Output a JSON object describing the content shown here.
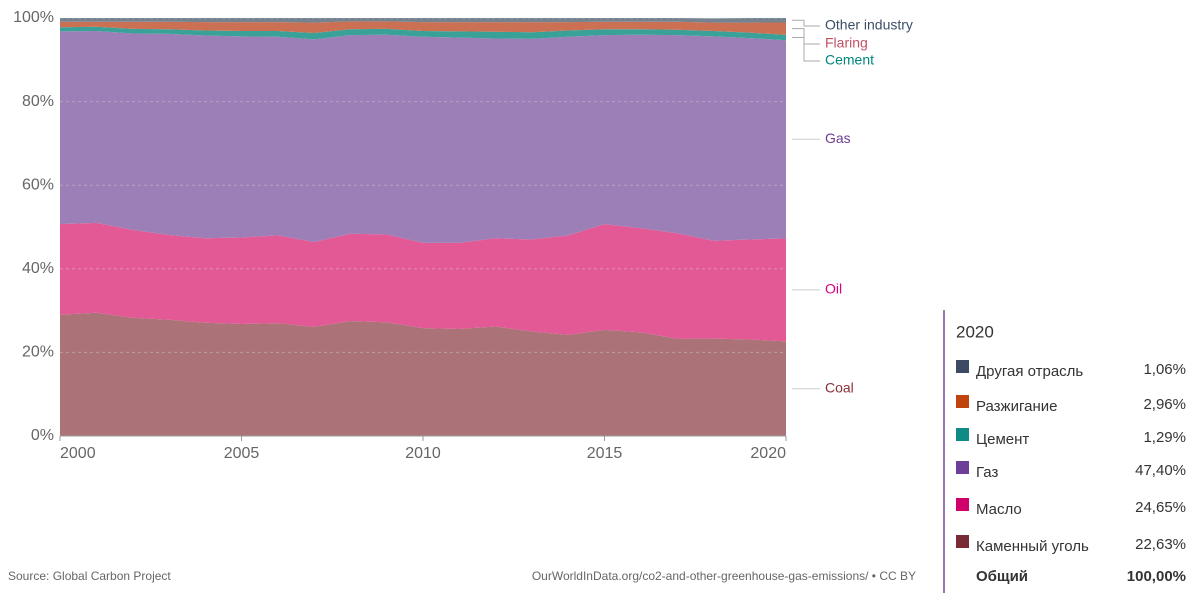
{
  "chart_data": {
    "type": "stacked_area",
    "x": [
      2000,
      2001,
      2002,
      2003,
      2004,
      2005,
      2006,
      2007,
      2008,
      2009,
      2010,
      2011,
      2012,
      2013,
      2014,
      2015,
      2016,
      2017,
      2018,
      2019,
      2020
    ],
    "xlim": [
      2000,
      2020
    ],
    "xticks": [
      2000,
      2005,
      2010,
      2015,
      2020
    ],
    "ylim": [
      0,
      100
    ],
    "yticks": [
      {
        "value": 0,
        "label": "0%"
      },
      {
        "value": 20,
        "label": "20%"
      },
      {
        "value": 40,
        "label": "40%"
      },
      {
        "value": 60,
        "label": "60%"
      },
      {
        "value": 80,
        "label": "80%"
      },
      {
        "value": 100,
        "label": "100%"
      }
    ],
    "grid": true,
    "series": [
      {
        "name": "Coal",
        "color": "#a66b70",
        "label_color": "#883039",
        "values": [
          29,
          29.5,
          28.3,
          27.8,
          27.1,
          26.8,
          27,
          26.1,
          27.5,
          27.2,
          25.8,
          25.6,
          26.2,
          25,
          24.2,
          25.4,
          24.8,
          23.3,
          23.3,
          23.1,
          22.63
        ]
      },
      {
        "name": "Oil",
        "color": "#e0508f",
        "label_color": "#d7007a",
        "values": [
          21.7,
          21.5,
          21,
          20.3,
          20.2,
          20.7,
          21,
          20.3,
          20.9,
          21,
          20.4,
          20.6,
          21.1,
          22,
          23.8,
          25.3,
          24.9,
          25.2,
          23.4,
          23.9,
          24.65
        ]
      },
      {
        "name": "Gas",
        "color": "#9778b2",
        "label_color": "#6d3e91",
        "values": [
          46.1,
          45.9,
          47,
          48.1,
          48.5,
          48.1,
          47.5,
          48.5,
          47.5,
          47.8,
          49.3,
          49.1,
          47.8,
          48,
          47.5,
          45.2,
          46.3,
          47.4,
          48.9,
          48.2,
          47.4
        ]
      },
      {
        "name": "Cement",
        "color": "#2f9c94",
        "label_color": "#00847e",
        "values": [
          1,
          1,
          1.1,
          1.1,
          1.2,
          1.3,
          1.4,
          1.5,
          1.4,
          1.4,
          1.4,
          1.5,
          1.6,
          1.6,
          1.5,
          1.4,
          1.3,
          1.3,
          1.3,
          1.3,
          1.29
        ]
      },
      {
        "name": "Flaring",
        "color": "#c8684a",
        "label_color": "#c15065",
        "values": [
          1.3,
          1.2,
          1.7,
          1.8,
          2,
          2.1,
          2.1,
          2.5,
          1.9,
          1.8,
          2.1,
          2.2,
          2.3,
          2.4,
          2,
          1.8,
          1.8,
          1.9,
          2,
          2.4,
          2.96
        ]
      },
      {
        "name": "Other industry",
        "color": "#6e7b8a",
        "label_color": "#3c4e66",
        "values": [
          0.9,
          0.9,
          0.9,
          0.9,
          1,
          1,
          1,
          1.1,
          0.8,
          0.8,
          1,
          1,
          1,
          1,
          1,
          0.9,
          0.9,
          0.9,
          1,
          1.1,
          1.06
        ]
      }
    ],
    "source": "Source: Global Carbon Project",
    "url": "OurWorldInData.org/co2-and-other-greenhouse-gas-emissions/ • CC BY"
  },
  "tooltip": {
    "title": "2020",
    "rows": [
      {
        "name": "Другая отрасль",
        "value": "1,06%",
        "color": "#3d4a63"
      },
      {
        "name": "Разжигание",
        "value": "2,96%",
        "color": "#c0440e"
      },
      {
        "name": "Цемент",
        "value": "1,29%",
        "color": "#0f8a84"
      },
      {
        "name": "Газ",
        "value": "47,40%",
        "color": "#6e3f99"
      },
      {
        "name": "Масло",
        "value": "24,65%",
        "color": "#d0006a"
      },
      {
        "name": "Каменный уголь",
        "value": "22,63%",
        "color": "#7a2a35"
      }
    ],
    "total": {
      "name": "Общий",
      "value": "100,00%"
    }
  }
}
